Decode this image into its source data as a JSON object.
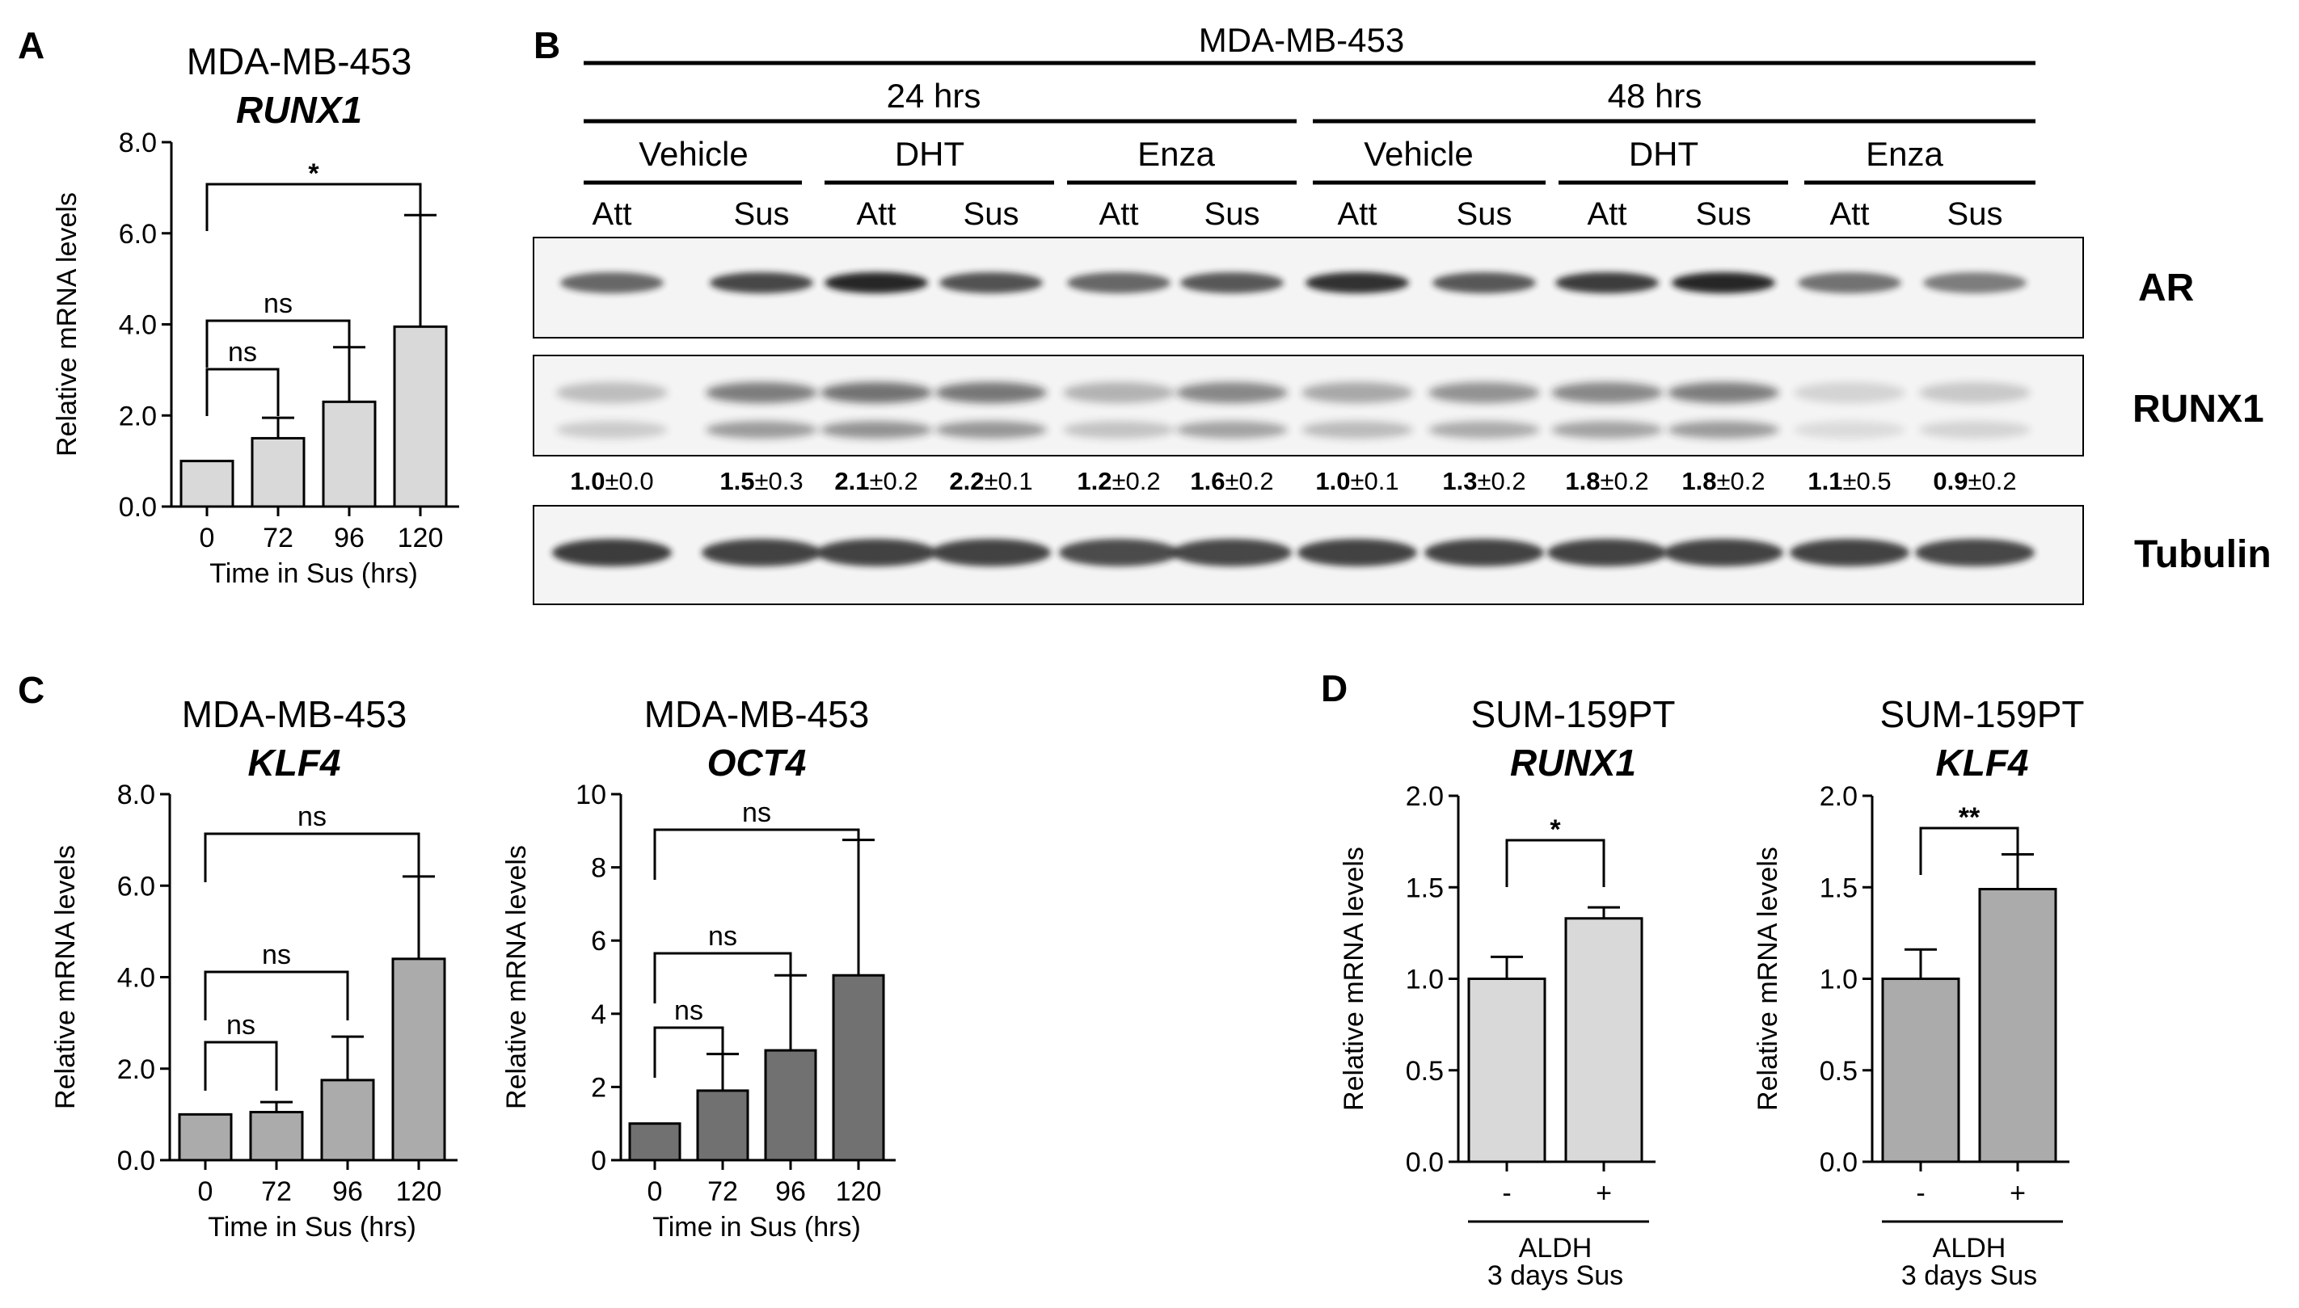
{
  "colors": {
    "light_bar": "#d9d9d9",
    "mid_bar": "#ababab",
    "dark_bar": "#717171",
    "blot_bg": "#f4f4f4",
    "band": "#1e1e1e"
  },
  "panelA": {
    "label": "A",
    "title": "MDA-MB-453",
    "gene": "RUNX1",
    "chart_data": {
      "type": "bar",
      "categories": [
        "0",
        "72",
        "96",
        "120"
      ],
      "values": [
        1.0,
        1.5,
        2.3,
        3.95
      ],
      "errors": [
        0,
        0.45,
        1.2,
        2.45
      ],
      "xlabel": "Time in Sus (hrs)",
      "ylabel": "Relative mRNA levels",
      "ylim": [
        0,
        8
      ],
      "yticks": [
        "0.0",
        "2.0",
        "4.0",
        "6.0",
        "8.0"
      ],
      "comparisons": [
        {
          "from": "0",
          "to": "72",
          "label": "ns"
        },
        {
          "from": "0",
          "to": "96",
          "label": "ns"
        },
        {
          "from": "0",
          "to": "120",
          "label": "*"
        }
      ]
    }
  },
  "panelB": {
    "label": "B",
    "cell_line": "MDA-MB-453",
    "times": [
      "24 hrs",
      "48 hrs"
    ],
    "conditions": [
      "Vehicle",
      "DHT",
      "Enza",
      "Vehicle",
      "DHT",
      "Enza"
    ],
    "lanes": [
      "Att",
      "Sus",
      "Att",
      "Sus",
      "Att",
      "Sus",
      "Att",
      "Sus",
      "Att",
      "Sus",
      "Att",
      "Sus"
    ],
    "blots": [
      "AR",
      "RUNX1",
      "Tubulin"
    ],
    "quant_mean": [
      "1.0",
      "1.5",
      "2.1",
      "2.2",
      "1.2",
      "1.6",
      "1.0",
      "1.3",
      "1.8",
      "1.8",
      "1.1",
      "0.9"
    ],
    "quant_sd": [
      "±0.0",
      "±0.3",
      "±0.2",
      "±0.1",
      "±0.2",
      "±0.2",
      "±0.1",
      "±0.2",
      "±0.2",
      "±0.2",
      "±0.5",
      "±0.2"
    ],
    "ar_intensity": [
      0.65,
      0.8,
      0.95,
      0.75,
      0.65,
      0.72,
      0.9,
      0.72,
      0.85,
      0.95,
      0.6,
      0.55
    ],
    "runx1_intensity": [
      0.25,
      0.55,
      0.6,
      0.58,
      0.3,
      0.5,
      0.35,
      0.45,
      0.5,
      0.55,
      0.15,
      0.2
    ],
    "tub_intensity": [
      0.85,
      0.82,
      0.82,
      0.82,
      0.78,
      0.8,
      0.82,
      0.82,
      0.82,
      0.82,
      0.82,
      0.8
    ]
  },
  "panelC1": {
    "label": "C",
    "title": "MDA-MB-453",
    "gene": "KLF4",
    "chart_data": {
      "type": "bar",
      "categories": [
        "0",
        "72",
        "96",
        "120"
      ],
      "values": [
        1.0,
        1.05,
        1.75,
        4.4
      ],
      "errors": [
        0,
        0.22,
        0.95,
        1.8
      ],
      "xlabel": "Time in Sus (hrs)",
      "ylabel": "Relative mRNA levels",
      "ylim": [
        0,
        8
      ],
      "yticks": [
        "0.0",
        "2.0",
        "4.0",
        "6.0",
        "8.0"
      ],
      "comparisons": [
        {
          "from": "0",
          "to": "72",
          "label": "ns"
        },
        {
          "from": "0",
          "to": "96",
          "label": "ns"
        },
        {
          "from": "0",
          "to": "120",
          "label": "ns"
        }
      ]
    }
  },
  "panelC2": {
    "title": "MDA-MB-453",
    "gene": "OCT4",
    "chart_data": {
      "type": "bar",
      "categories": [
        "0",
        "72",
        "96",
        "120"
      ],
      "values": [
        1.0,
        1.9,
        3.0,
        5.05
      ],
      "errors": [
        0,
        1.0,
        2.05,
        3.7
      ],
      "xlabel": "Time in Sus (hrs)",
      "ylabel": "Relative mRNA levels",
      "ylim": [
        0,
        10
      ],
      "yticks": [
        "0",
        "2",
        "4",
        "6",
        "8",
        "10"
      ],
      "comparisons": [
        {
          "from": "0",
          "to": "72",
          "label": "ns"
        },
        {
          "from": "0",
          "to": "96",
          "label": "ns"
        },
        {
          "from": "0",
          "to": "120",
          "label": "ns"
        }
      ]
    }
  },
  "panelD1": {
    "label": "D",
    "title": "SUM-159PT",
    "gene": "RUNX1",
    "chart_data": {
      "type": "bar",
      "categories": [
        "-",
        "+"
      ],
      "values": [
        1.0,
        1.33
      ],
      "errors": [
        0.12,
        0.06
      ],
      "group_label": "ALDH",
      "group_sub": "3 days Sus",
      "ylabel": "Relative mRNA levels",
      "ylim": [
        0,
        2
      ],
      "yticks": [
        "0.0",
        "0.5",
        "1.0",
        "1.5",
        "2.0"
      ],
      "comparisons": [
        {
          "from": "-",
          "to": "+",
          "label": "*"
        }
      ]
    }
  },
  "panelD2": {
    "title": "SUM-159PT",
    "gene": "KLF4",
    "chart_data": {
      "type": "bar",
      "categories": [
        "-",
        "+"
      ],
      "values": [
        1.0,
        1.49
      ],
      "errors": [
        0.16,
        0.19
      ],
      "group_label": "ALDH",
      "group_sub": "3 days Sus",
      "ylabel": "Relative mRNA levels",
      "ylim": [
        0,
        2
      ],
      "yticks": [
        "0.0",
        "0.5",
        "1.0",
        "1.5",
        "2.0"
      ],
      "comparisons": [
        {
          "from": "-",
          "to": "+",
          "label": "**"
        }
      ]
    }
  }
}
